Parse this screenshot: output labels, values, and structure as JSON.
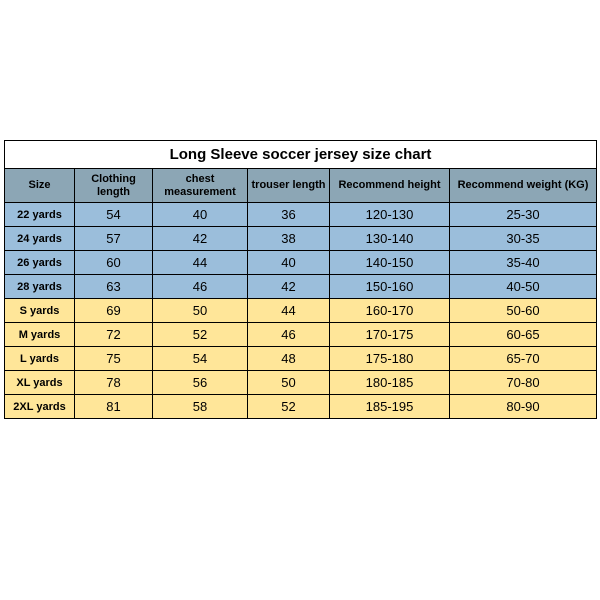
{
  "table": {
    "title": "Long Sleeve soccer jersey size chart",
    "columns": [
      {
        "label": "Size",
        "width": 70
      },
      {
        "label": "Clothing length",
        "width": 78
      },
      {
        "label": "chest measurement",
        "width": 95
      },
      {
        "label": "trouser length",
        "width": 82
      },
      {
        "label": "Recommend height",
        "width": 120
      },
      {
        "label": "Recommend weight (KG)",
        "width": 147
      }
    ],
    "header_bg": "#8ca6b5",
    "colors": {
      "blue": "#9bbedb",
      "yellow": "#ffe699",
      "border": "#000000",
      "title_bg": "#ffffff"
    },
    "rows": [
      {
        "group": "blue",
        "cells": [
          "22 yards",
          "54",
          "40",
          "36",
          "120-130",
          "25-30"
        ]
      },
      {
        "group": "blue",
        "cells": [
          "24 yards",
          "57",
          "42",
          "38",
          "130-140",
          "30-35"
        ]
      },
      {
        "group": "blue",
        "cells": [
          "26 yards",
          "60",
          "44",
          "40",
          "140-150",
          "35-40"
        ]
      },
      {
        "group": "blue",
        "cells": [
          "28 yards",
          "63",
          "46",
          "42",
          "150-160",
          "40-50"
        ]
      },
      {
        "group": "yellow",
        "cells": [
          "S yards",
          "69",
          "50",
          "44",
          "160-170",
          "50-60"
        ]
      },
      {
        "group": "yellow",
        "cells": [
          "M yards",
          "72",
          "52",
          "46",
          "170-175",
          "60-65"
        ]
      },
      {
        "group": "yellow",
        "cells": [
          "L yards",
          "75",
          "54",
          "48",
          "175-180",
          "65-70"
        ]
      },
      {
        "group": "yellow",
        "cells": [
          "XL yards",
          "78",
          "56",
          "50",
          "180-185",
          "70-80"
        ]
      },
      {
        "group": "yellow",
        "cells": [
          "2XL yards",
          "81",
          "58",
          "52",
          "185-195",
          "80-90"
        ]
      }
    ]
  }
}
